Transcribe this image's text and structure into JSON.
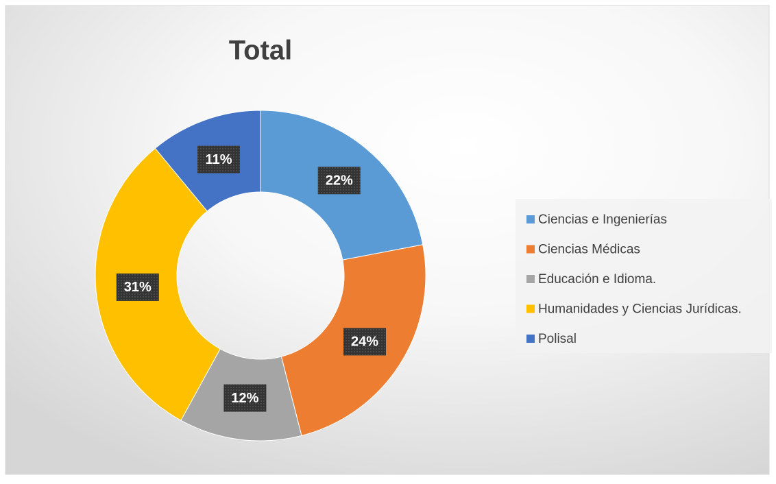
{
  "chart_data": {
    "type": "donut",
    "title": "Total",
    "categories": [
      "Ciencias e Ingenierías",
      "Ciencias Médicas",
      "Educación e Idioma.",
      "Humanidades y Ciencias Jurídicas.",
      "Polisal"
    ],
    "values": [
      22,
      24,
      12,
      31,
      11
    ],
    "value_labels": [
      "22%",
      "24%",
      "12%",
      "31%",
      "11%"
    ],
    "colors": [
      "#5b9bd5",
      "#ed7d31",
      "#a5a5a5",
      "#ffc000",
      "#4472c4"
    ],
    "legend": "right"
  }
}
